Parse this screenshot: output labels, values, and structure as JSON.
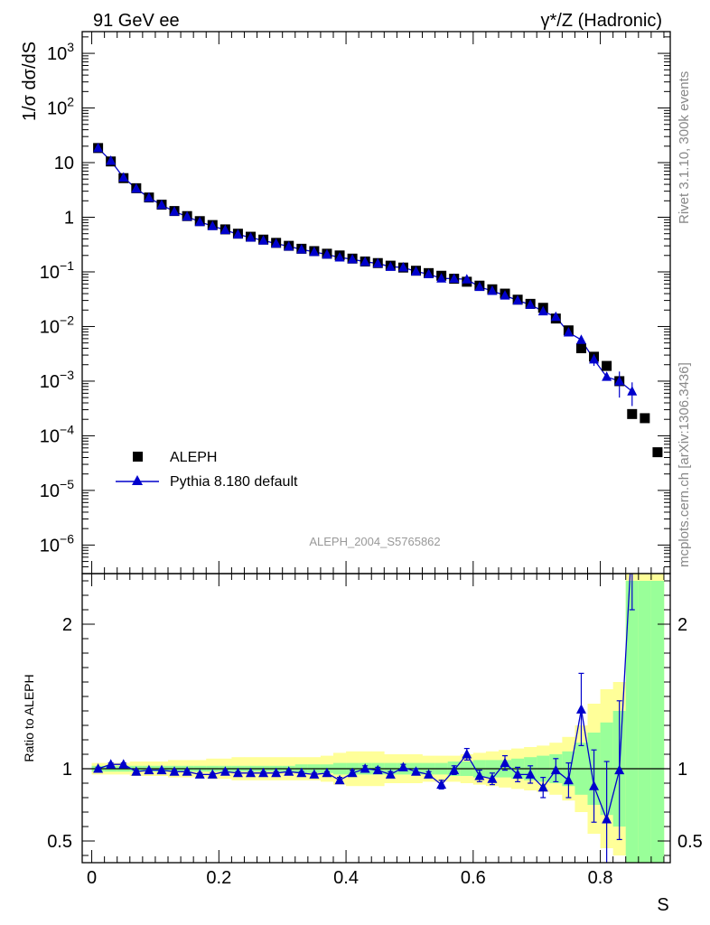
{
  "header": {
    "left": "91 GeV ee",
    "right": "γ*/Z (Hadronic)"
  },
  "side_labels": {
    "rivet": "Rivet 3.1.10,  300k events",
    "mcplots": "mcplots.cern.ch [arXiv:1306.3436]"
  },
  "analysis_id": "ALEPH_2004_S5765862",
  "colors": {
    "data": "#000000",
    "mc": "#0000cc",
    "band_yellow": "#ffff99",
    "band_green": "#99ff99"
  },
  "chart_data": [
    {
      "type": "scatter",
      "ylabel": "1/σ  dσ/dS",
      "yscale": "log",
      "xlim": [
        -0.015,
        0.91
      ],
      "ylim": [
        3e-07,
        2500.0
      ],
      "yticks": [
        {
          "v": 1000,
          "m": "10",
          "e": "3"
        },
        {
          "v": 100,
          "m": "10",
          "e": "2"
        },
        {
          "v": 10,
          "m": "10",
          "e": ""
        },
        {
          "v": 1,
          "m": "1",
          "e": ""
        },
        {
          "v": 0.1,
          "m": "10",
          "e": "−1"
        },
        {
          "v": 0.01,
          "m": "10",
          "e": "−2"
        },
        {
          "v": 0.001,
          "m": "10",
          "e": "−3"
        },
        {
          "v": 0.0001,
          "m": "10",
          "e": "−4"
        },
        {
          "v": 1e-05,
          "m": "10",
          "e": "−5"
        },
        {
          "v": 1e-06,
          "m": "10",
          "e": "−6"
        }
      ],
      "legend": [
        {
          "label": "ALEPH",
          "marker": "square"
        },
        {
          "label": "Pythia 8.180 default",
          "marker": "triangle-line"
        }
      ],
      "series": [
        {
          "name": "ALEPH",
          "x": [
            0.01,
            0.03,
            0.05,
            0.07,
            0.09,
            0.11,
            0.13,
            0.15,
            0.17,
            0.19,
            0.21,
            0.23,
            0.25,
            0.27,
            0.29,
            0.31,
            0.33,
            0.35,
            0.37,
            0.39,
            0.41,
            0.43,
            0.45,
            0.47,
            0.49,
            0.51,
            0.53,
            0.55,
            0.57,
            0.59,
            0.61,
            0.63,
            0.65,
            0.67,
            0.69,
            0.71,
            0.73,
            0.75,
            0.77,
            0.79,
            0.81,
            0.83,
            0.85,
            0.87,
            0.89
          ],
          "y": [
            18.5,
            10.5,
            5.2,
            3.4,
            2.3,
            1.7,
            1.3,
            1.05,
            0.85,
            0.72,
            0.6,
            0.5,
            0.44,
            0.39,
            0.34,
            0.3,
            0.265,
            0.24,
            0.215,
            0.2,
            0.175,
            0.155,
            0.145,
            0.13,
            0.12,
            0.105,
            0.095,
            0.085,
            0.075,
            0.066,
            0.056,
            0.048,
            0.04,
            0.031,
            0.026,
            0.022,
            0.014,
            0.0085,
            0.004,
            0.0028,
            0.0019,
            0.001,
            0.00025,
            0.00021,
            5e-05
          ]
        },
        {
          "name": "Pythia 8.180 default",
          "x": [
            0.01,
            0.03,
            0.05,
            0.07,
            0.09,
            0.11,
            0.13,
            0.15,
            0.17,
            0.19,
            0.21,
            0.23,
            0.25,
            0.27,
            0.29,
            0.31,
            0.33,
            0.35,
            0.37,
            0.39,
            0.41,
            0.43,
            0.45,
            0.47,
            0.49,
            0.51,
            0.53,
            0.55,
            0.57,
            0.59,
            0.61,
            0.63,
            0.65,
            0.67,
            0.69,
            0.71,
            0.73,
            0.75,
            0.77,
            0.79,
            0.81,
            0.83,
            0.85
          ],
          "y": [
            18.5,
            10.8,
            5.35,
            3.35,
            2.28,
            1.68,
            1.27,
            1.03,
            0.82,
            0.69,
            0.585,
            0.485,
            0.425,
            0.375,
            0.33,
            0.292,
            0.258,
            0.232,
            0.208,
            0.184,
            0.17,
            0.153,
            0.143,
            0.124,
            0.121,
            0.102,
            0.091,
            0.076,
            0.075,
            0.073,
            0.053,
            0.045,
            0.037,
            0.03,
            0.025,
            0.019,
            0.015,
            0.0078,
            0.0057,
            0.0025,
            0.0012,
            0.001,
            0.00065
          ]
        }
      ]
    },
    {
      "type": "line",
      "ylabel": "Ratio to ALEPH",
      "xlabel": "S",
      "xlim": [
        -0.015,
        0.91
      ],
      "ylim": [
        0.35,
        2.35
      ],
      "reference": 1.0,
      "xticks": [
        0,
        0.2,
        0.4,
        0.6,
        0.8
      ],
      "xticklabels": [
        "0",
        "0.2",
        "0.4",
        "0.6",
        "0.8"
      ],
      "yticks": [
        0.5,
        1,
        2
      ],
      "yticklabels": [
        "0.5",
        "1",
        "2"
      ],
      "bin_edges": [
        0,
        0.02,
        0.04,
        0.06,
        0.08,
        0.1,
        0.12,
        0.14,
        0.16,
        0.18,
        0.2,
        0.22,
        0.24,
        0.26,
        0.28,
        0.3,
        0.32,
        0.34,
        0.36,
        0.38,
        0.4,
        0.42,
        0.44,
        0.46,
        0.48,
        0.5,
        0.52,
        0.54,
        0.56,
        0.58,
        0.6,
        0.62,
        0.64,
        0.66,
        0.68,
        0.7,
        0.72,
        0.74,
        0.76,
        0.78,
        0.8,
        0.82,
        0.84,
        0.86,
        0.88,
        0.9
      ],
      "band_yellow_half": [
        0.04,
        0.04,
        0.04,
        0.05,
        0.05,
        0.05,
        0.06,
        0.06,
        0.06,
        0.07,
        0.07,
        0.08,
        0.08,
        0.08,
        0.08,
        0.08,
        0.08,
        0.08,
        0.09,
        0.11,
        0.12,
        0.12,
        0.12,
        0.1,
        0.1,
        0.1,
        0.09,
        0.09,
        0.09,
        0.1,
        0.11,
        0.12,
        0.13,
        0.14,
        0.15,
        0.16,
        0.18,
        0.22,
        0.3,
        0.45,
        0.55,
        0.6,
        1.4,
        1.4,
        1.4
      ],
      "band_green_half": [
        0.02,
        0.02,
        0.02,
        0.02,
        0.02,
        0.02,
        0.02,
        0.02,
        0.02,
        0.02,
        0.02,
        0.02,
        0.02,
        0.02,
        0.02,
        0.02,
        0.03,
        0.03,
        0.03,
        0.04,
        0.04,
        0.04,
        0.04,
        0.04,
        0.04,
        0.04,
        0.04,
        0.04,
        0.05,
        0.05,
        0.06,
        0.06,
        0.06,
        0.07,
        0.08,
        0.09,
        0.1,
        0.12,
        0.18,
        0.25,
        0.32,
        0.4,
        1.3,
        1.3,
        1.3
      ],
      "series": [
        {
          "name": "Pythia 8.180 default",
          "x": [
            0.01,
            0.03,
            0.05,
            0.07,
            0.09,
            0.11,
            0.13,
            0.15,
            0.17,
            0.19,
            0.21,
            0.23,
            0.25,
            0.27,
            0.29,
            0.31,
            0.33,
            0.35,
            0.37,
            0.39,
            0.41,
            0.43,
            0.45,
            0.47,
            0.49,
            0.51,
            0.53,
            0.55,
            0.57,
            0.59,
            0.61,
            0.63,
            0.65,
            0.67,
            0.69,
            0.71,
            0.73,
            0.75,
            0.77,
            0.79,
            0.81,
            0.83,
            0.85
          ],
          "y": [
            1.0,
            1.03,
            1.03,
            0.98,
            0.99,
            0.99,
            0.98,
            0.98,
            0.96,
            0.96,
            0.98,
            0.97,
            0.97,
            0.97,
            0.97,
            0.98,
            0.97,
            0.96,
            0.97,
            0.92,
            0.97,
            1.0,
            0.99,
            0.96,
            1.01,
            0.98,
            0.96,
            0.89,
            0.99,
            1.1,
            0.95,
            0.93,
            1.04,
            0.96,
            0.96,
            0.87,
            0.99,
            0.92,
            1.41,
            0.88,
            0.65,
            0.99,
            2.6
          ],
          "err": [
            0.01,
            0.01,
            0.01,
            0.01,
            0.01,
            0.01,
            0.01,
            0.01,
            0.01,
            0.01,
            0.01,
            0.01,
            0.01,
            0.01,
            0.01,
            0.01,
            0.01,
            0.01,
            0.01,
            0.02,
            0.02,
            0.02,
            0.02,
            0.02,
            0.02,
            0.02,
            0.02,
            0.03,
            0.03,
            0.04,
            0.04,
            0.04,
            0.05,
            0.05,
            0.06,
            0.07,
            0.08,
            0.12,
            0.25,
            0.25,
            0.4,
            0.48,
            0.5
          ]
        }
      ]
    }
  ]
}
